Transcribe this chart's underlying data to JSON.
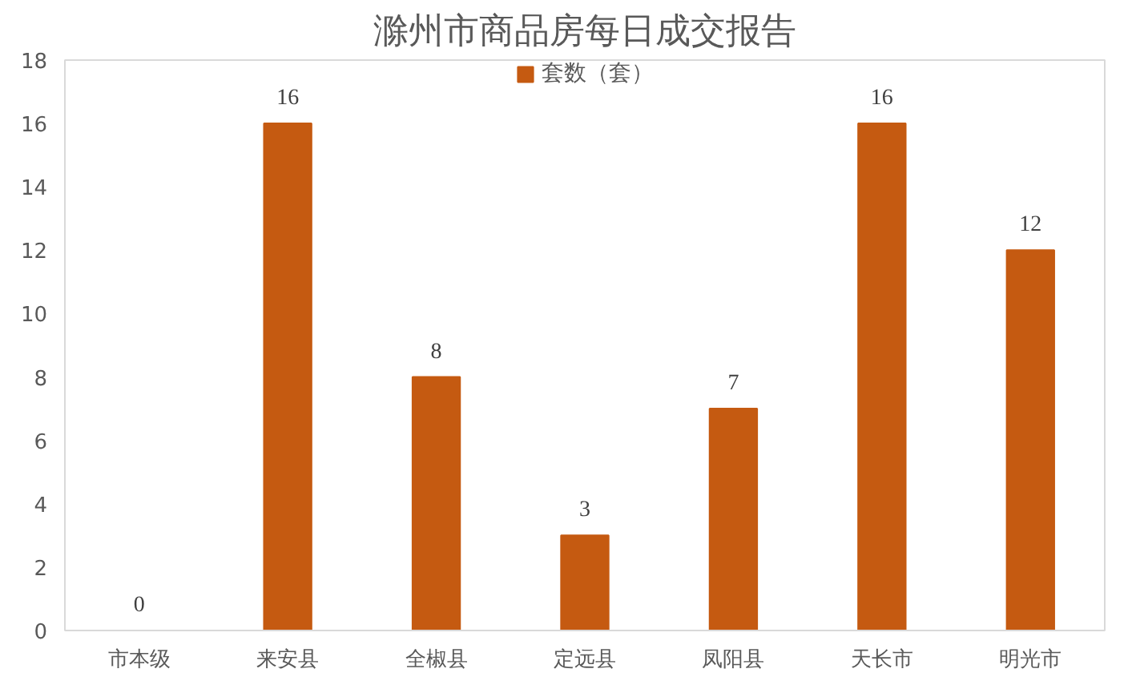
{
  "chart_data": {
    "type": "bar",
    "title": "滁州市商品房每日成交报告",
    "categories": [
      "市本级",
      "来安县",
      "全椒县",
      "定远县",
      "凤阳县",
      "天长市",
      "明光市"
    ],
    "series": [
      {
        "name": "套数（套）",
        "color": "#c55a11",
        "values": [
          0,
          16,
          8,
          3,
          7,
          16,
          12
        ]
      }
    ],
    "ylim": [
      0,
      18
    ],
    "yticks": [
      0,
      2,
      4,
      6,
      8,
      10,
      12,
      14,
      16,
      18
    ],
    "grid": false,
    "legend": "top",
    "data_labels": true
  }
}
